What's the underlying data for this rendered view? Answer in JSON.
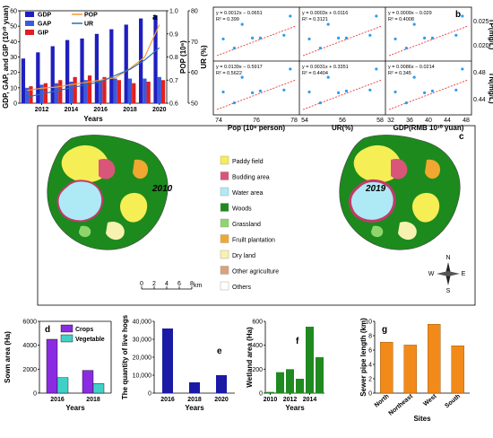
{
  "chart_data": [
    {
      "panel": "a",
      "type": "bar",
      "x": [
        2011,
        2012,
        2013,
        2014,
        2015,
        2016,
        2017,
        2018,
        2019,
        2020
      ],
      "xticks": [
        "2012",
        "2014",
        "2016",
        "2018",
        "2020"
      ],
      "xlabel": "Years",
      "ylabel_left": "GDP, GAP, and GIP (10¹⁰ yuan)",
      "ylabel_right1": "POP (10⁶)",
      "ylabel_right2": "UR (%)",
      "yticks_left": [
        "0",
        "10",
        "20",
        "30",
        "40",
        "50",
        "60"
      ],
      "yticks_right1": [
        "0.6",
        "0.7",
        "0.8",
        "0.9",
        "1.0"
      ],
      "yticks_right2": [
        "50",
        "60",
        "70",
        "80"
      ],
      "ylim_left": [
        0,
        60
      ],
      "ylim_pop": [
        0.6,
        1.0
      ],
      "ylim_ur": [
        50,
        80
      ],
      "bars": [
        {
          "name": "GDP",
          "color": "#1f1fbf",
          "values": [
            29,
            33,
            37,
            41,
            42,
            45,
            48,
            51,
            55,
            57
          ]
        },
        {
          "name": "GAP",
          "color": "#3b5bdb",
          "values": [
            10,
            12,
            13,
            14,
            15,
            15,
            16,
            16,
            16,
            17
          ]
        },
        {
          "name": "GIP",
          "color": "#e02020",
          "values": [
            11,
            13,
            15,
            17,
            18,
            17,
            15,
            13,
            14,
            15
          ]
        }
      ],
      "lines": [
        {
          "name": "POP",
          "color": "#f39c38",
          "axis": "pop",
          "values": [
            0.655,
            0.665,
            0.67,
            0.68,
            0.69,
            0.7,
            0.71,
            0.75,
            0.8,
            0.94
          ]
        },
        {
          "name": "UR",
          "color": "#2a6fb5",
          "axis": "ur",
          "values": [
            52,
            53,
            54,
            55,
            56,
            57,
            59,
            61,
            64,
            68
          ]
        }
      ]
    },
    {
      "panel": "b",
      "type": "scatter",
      "xlabels": [
        "Pop (10⁶ person)",
        "UR(%)",
        "GDP(RMB 10¹⁰ yuan)"
      ],
      "ylabels": [
        "TP(mg/L)",
        "TN(mg/L)"
      ],
      "xticks": [
        [
          "74",
          "76",
          "78"
        ],
        [
          "54",
          "56",
          "58"
        ],
        [
          "32",
          "36",
          "40",
          "44",
          "48"
        ]
      ],
      "yticks_top": [
        "0.020",
        "0.025"
      ],
      "yticks_bottom": [
        "0.44",
        "0.48"
      ],
      "cells": [
        {
          "eq": "y = 0.0012x − 0.0651",
          "r2": "R² = 0.399"
        },
        {
          "eq": "y = 0.0003x + 0.0116",
          "r2": "R² = 0.3121"
        },
        {
          "eq": "y = 0.0009x − 0.029",
          "r2": "R² = 0.4008"
        },
        {
          "eq": "y = 0.0139x − 0.5917",
          "r2": "R² = 0.5622"
        },
        {
          "eq": "y = 0.0031x + 0.3351",
          "r2": "R² = 0.4404"
        },
        {
          "eq": "y = 0.0086x − 0.0214",
          "r2": "R² = 0.345"
        }
      ]
    },
    {
      "panel": "c",
      "type": "map",
      "years": [
        "2010",
        "2019"
      ],
      "legend": [
        {
          "label": "Paddy field",
          "color": "#f5ee55"
        },
        {
          "label": "Budding area",
          "color": "#d9557a"
        },
        {
          "label": "Water area",
          "color": "#aeeaf5"
        },
        {
          "label": "Woods",
          "color": "#1d8a1d"
        },
        {
          "label": "Grassland",
          "color": "#8fd66a"
        },
        {
          "label": "Fruilt plantation",
          "color": "#f0a830"
        },
        {
          "label": "Dry land",
          "color": "#f7f2b0"
        },
        {
          "label": "Other agriculture",
          "color": "#d9a37a"
        },
        {
          "label": "Others",
          "color": "#ffffff"
        }
      ],
      "scale_ticks": [
        "0",
        "2",
        "4",
        "6",
        "8"
      ],
      "scale_unit": "km",
      "compass": [
        "N",
        "S",
        "E",
        "W"
      ]
    },
    {
      "panel": "d",
      "type": "bar",
      "categories": [
        "2016",
        "2018"
      ],
      "series": [
        {
          "name": "Crops",
          "color": "#8a2be2",
          "values": [
            4500,
            1900
          ]
        },
        {
          "name": "Vegetable",
          "color": "#3fd1c8",
          "values": [
            1300,
            800
          ]
        }
      ],
      "ylim": [
        0,
        6000
      ],
      "yticks": [
        "0",
        "2000",
        "4000",
        "6000"
      ],
      "xlabel": "Years",
      "ylabel": "Sown area (Ha)"
    },
    {
      "panel": "e",
      "type": "bar",
      "categories": [
        "2016",
        "2018",
        "2020"
      ],
      "values": [
        36000,
        6000,
        10000
      ],
      "color": "#1a1aa6",
      "ylim": [
        0,
        40000
      ],
      "yticks": [
        "0",
        "10,000",
        "20,000",
        "30,000",
        "40,000"
      ],
      "xlabel": "Years",
      "ylabel": "The quantity of live hogs"
    },
    {
      "panel": "f",
      "type": "bar",
      "x": [
        2010,
        2011,
        2012,
        2013,
        2014,
        2015
      ],
      "values": [
        10,
        175,
        200,
        120,
        555,
        300
      ],
      "color": "#1f8a1f",
      "ylim": [
        0,
        600
      ],
      "yticks": [
        "0",
        "200",
        "400",
        "600"
      ],
      "xticks": [
        "2010",
        "2012",
        "2014"
      ],
      "xlabel": "Years",
      "ylabel": "Wetland area (Ha)"
    },
    {
      "panel": "g",
      "type": "bar",
      "categories": [
        "North",
        "Northeast",
        "West",
        "South"
      ],
      "values": [
        7.1,
        6.7,
        9.6,
        6.6
      ],
      "color": "#f28a1a",
      "ylim": [
        0,
        10
      ],
      "yticks": [
        "0",
        "2",
        "4",
        "6",
        "8",
        "10"
      ],
      "xlabel": "Sites",
      "ylabel": "Sewer pipe length (km)"
    }
  ]
}
